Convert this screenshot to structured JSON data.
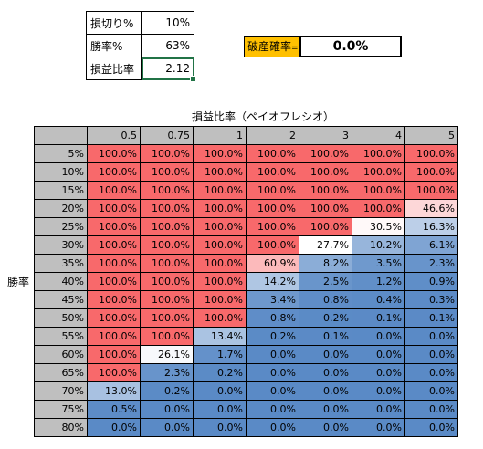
{
  "params": [
    {
      "label": "損切り%",
      "value": "10%"
    },
    {
      "label": "勝率%",
      "value": "63%"
    },
    {
      "label": "損益比率",
      "value": "2.12"
    }
  ],
  "ruin": {
    "label": "破産確率",
    "sign": "=",
    "value": "0.0%"
  },
  "matrix": {
    "column_title": "損益比率（ペイオフレシオ）",
    "row_title": "勝率",
    "columns": [
      "0.5",
      "0.75",
      "1",
      "2",
      "3",
      "4",
      "5"
    ],
    "rows": [
      {
        "label": "5%",
        "cells": [
          "100.0%",
          "100.0%",
          "100.0%",
          "100.0%",
          "100.0%",
          "100.0%",
          "100.0%"
        ]
      },
      {
        "label": "10%",
        "cells": [
          "100.0%",
          "100.0%",
          "100.0%",
          "100.0%",
          "100.0%",
          "100.0%",
          "100.0%"
        ]
      },
      {
        "label": "15%",
        "cells": [
          "100.0%",
          "100.0%",
          "100.0%",
          "100.0%",
          "100.0%",
          "100.0%",
          "100.0%"
        ]
      },
      {
        "label": "20%",
        "cells": [
          "100.0%",
          "100.0%",
          "100.0%",
          "100.0%",
          "100.0%",
          "100.0%",
          "46.6%"
        ]
      },
      {
        "label": "25%",
        "cells": [
          "100.0%",
          "100.0%",
          "100.0%",
          "100.0%",
          "100.0%",
          "30.5%",
          "16.3%"
        ]
      },
      {
        "label": "30%",
        "cells": [
          "100.0%",
          "100.0%",
          "100.0%",
          "100.0%",
          "27.7%",
          "10.2%",
          "6.1%"
        ]
      },
      {
        "label": "35%",
        "cells": [
          "100.0%",
          "100.0%",
          "100.0%",
          "60.9%",
          "8.2%",
          "3.5%",
          "2.3%"
        ]
      },
      {
        "label": "40%",
        "cells": [
          "100.0%",
          "100.0%",
          "100.0%",
          "14.2%",
          "2.5%",
          "1.2%",
          "0.9%"
        ]
      },
      {
        "label": "45%",
        "cells": [
          "100.0%",
          "100.0%",
          "100.0%",
          "3.4%",
          "0.8%",
          "0.4%",
          "0.3%"
        ]
      },
      {
        "label": "50%",
        "cells": [
          "100.0%",
          "100.0%",
          "100.0%",
          "0.8%",
          "0.2%",
          "0.1%",
          "0.1%"
        ]
      },
      {
        "label": "55%",
        "cells": [
          "100.0%",
          "100.0%",
          "13.4%",
          "0.2%",
          "0.1%",
          "0.0%",
          "0.0%"
        ]
      },
      {
        "label": "60%",
        "cells": [
          "100.0%",
          "26.1%",
          "1.7%",
          "0.0%",
          "0.0%",
          "0.0%",
          "0.0%"
        ]
      },
      {
        "label": "65%",
        "cells": [
          "100.0%",
          "2.3%",
          "0.2%",
          "0.0%",
          "0.0%",
          "0.0%",
          "0.0%"
        ]
      },
      {
        "label": "70%",
        "cells": [
          "13.0%",
          "0.2%",
          "0.0%",
          "0.0%",
          "0.0%",
          "0.0%",
          "0.0%"
        ]
      },
      {
        "label": "75%",
        "cells": [
          "0.5%",
          "0.0%",
          "0.0%",
          "0.0%",
          "0.0%",
          "0.0%",
          "0.0%"
        ]
      },
      {
        "label": "80%",
        "cells": [
          "0.0%",
          "0.0%",
          "0.0%",
          "0.0%",
          "0.0%",
          "0.0%",
          "0.0%"
        ]
      }
    ]
  },
  "colors": {
    "high": "#f8696b",
    "mid": "#ffffff",
    "low": "#5a8ac6",
    "header": "#bfbfbf",
    "ruin_label": "#ffc000"
  }
}
